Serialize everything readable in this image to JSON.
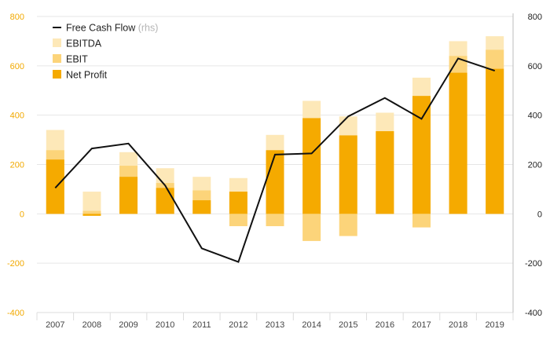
{
  "chart_data": {
    "type": "bar",
    "categories": [
      "2007",
      "2008",
      "2009",
      "2010",
      "2011",
      "2012",
      "2013",
      "2014",
      "2015",
      "2016",
      "2017",
      "2018",
      "2019"
    ],
    "series": [
      {
        "name": "EBITDA",
        "color": "#fde8b8",
        "kind": "bar",
        "values": [
          340,
          90,
          250,
          185,
          150,
          145,
          320,
          458,
          395,
          410,
          552,
          700,
          720
        ]
      },
      {
        "name": "EBIT",
        "color": "#fcd47a",
        "kind": "bar",
        "values": [
          258,
          12,
          195,
          125,
          95,
          -50,
          -50,
          -110,
          -90,
          335,
          -55,
          640,
          665
        ]
      },
      {
        "name": "Net Profit",
        "color": "#f5aa00",
        "kind": "bar",
        "values": [
          220,
          -8,
          150,
          105,
          55,
          90,
          258,
          388,
          318,
          335,
          478,
          572,
          588
        ]
      },
      {
        "name": "Free Cash Flow",
        "name_suffix": "(rhs)",
        "color": "#111111",
        "kind": "line",
        "values": [
          105,
          265,
          285,
          115,
          -140,
          -195,
          240,
          245,
          395,
          470,
          385,
          630,
          580
        ]
      }
    ],
    "y_left": {
      "ylim": [
        -400,
        800
      ],
      "ticks": [
        "800",
        "600",
        "400",
        "200",
        "0",
        "-200",
        "-400"
      ]
    },
    "y_right": {
      "ylim": [
        -400,
        800
      ],
      "ticks": [
        "800",
        "600",
        "400",
        "200",
        "0",
        "-200",
        "-400"
      ]
    },
    "legend_placement": "top-left",
    "grid": true
  }
}
